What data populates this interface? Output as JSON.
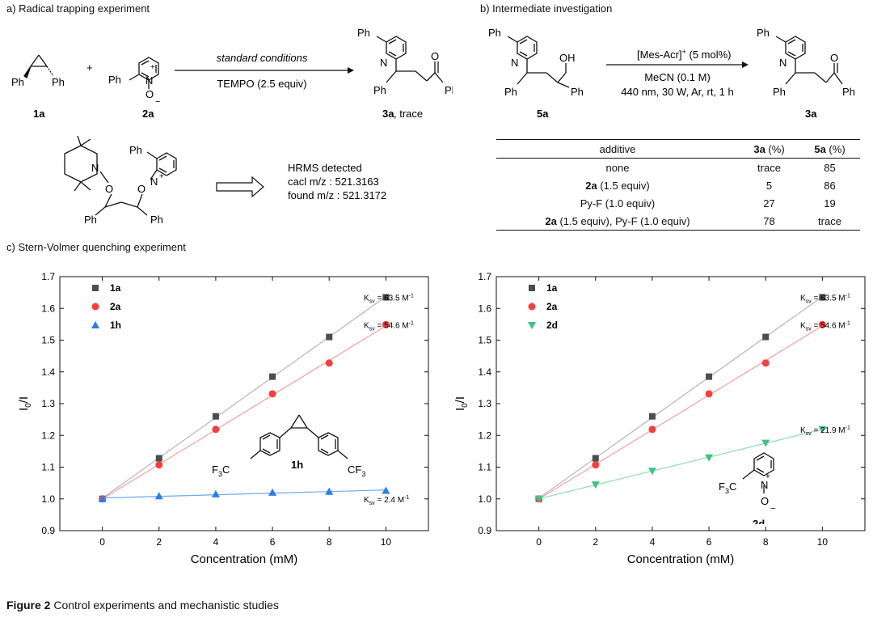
{
  "section_a": {
    "title": "a) Radical trapping experiment",
    "cpd1_label": "1a",
    "cpd2_label": "2a",
    "product_label": "3a",
    "product_suffix": ", trace",
    "plus": "+",
    "cond_top": "standard conditions",
    "cond_bottom": "TEMPO (2.5 equiv)",
    "ph": "Ph",
    "N": "N",
    "O": "O",
    "Nplus": "N",
    "plus_charge": "+",
    "minus_charge": "−",
    "hrms_title": "HRMS detected",
    "hrms_calc": "cacl m/z : 521.3163",
    "hrms_found": "found m/z : 521.3172"
  },
  "section_b": {
    "title": "b) Intermediate investigation",
    "sm_label": "5a",
    "prod_label": "3a",
    "OH": "OH",
    "cond_1": "[Mes-Acr]",
    "cond_1_sup": "+",
    "cond_1_tail": " (5 mol%)",
    "cond_2": "MeCN (0.1 M)",
    "cond_3": "440 nm, 30 W, Ar, rt, 1 h",
    "table": {
      "headers": {
        "additive": "additive",
        "c3a_bold": "3a",
        "c3a_unit": " (%)",
        "c5a_bold": "5a",
        "c5a_unit": " (%)"
      },
      "rows": [
        {
          "additive_bold": "",
          "additive": "none",
          "v3a": "trace",
          "v5a": "85"
        },
        {
          "additive_bold": "2a",
          "additive": " (1.5 equiv)",
          "v3a": "5",
          "v5a": "86"
        },
        {
          "additive_bold": "",
          "additive": "Py-F (1.0 equiv)",
          "v3a": "27",
          "v5a": "19"
        },
        {
          "additive_bold": "2a",
          "additive": " (1.5 equiv), Py-F (1.0 equiv)",
          "v3a": "78",
          "v5a": "trace"
        }
      ]
    }
  },
  "section_c": {
    "title": "c) Stern-Volmer quenching experiment",
    "cpd_1h": "1h",
    "cpd_2d": "2d",
    "cf3": "F",
    "cf3_sub": "3",
    "cf3_prefix": "F",
    "cf3_prefix_c": "C"
  },
  "chart_data": [
    {
      "type": "scatter",
      "xlabel": "Concentration (mM)",
      "ylabel": "I0/I",
      "ylabel_main": "I",
      "ylabel_sub": "0",
      "ylabel_tail": "/I",
      "xlim": [
        -1.5,
        11.5
      ],
      "ylim": [
        0.9,
        1.7
      ],
      "x_ticks": [
        "0",
        "2",
        "4",
        "6",
        "8",
        "10"
      ],
      "y_ticks": [
        "0.9",
        "1.0",
        "1.1",
        "1.2",
        "1.3",
        "1.4",
        "1.5",
        "1.6",
        "1.7"
      ],
      "x": [
        0,
        2,
        4,
        6,
        8,
        10
      ],
      "legend_position": "top-left",
      "series": [
        {
          "name": "1a",
          "marker": "square",
          "color": "#4d4d4d",
          "line_color": "#b5b5b5",
          "values": [
            1.0,
            1.128,
            1.26,
            1.385,
            1.51,
            1.635
          ],
          "ksv": "63.5",
          "ksv_y": 1.635
        },
        {
          "name": "2a",
          "marker": "circle",
          "color": "#f24040",
          "line_color": "#f5a0a0",
          "values": [
            1.0,
            1.107,
            1.219,
            1.331,
            1.428,
            1.549
          ],
          "ksv": "54.6",
          "ksv_y": 1.549
        },
        {
          "name": "1h",
          "marker": "triangle-up",
          "color": "#2b7de9",
          "line_color": "#6fa7ee",
          "values": [
            1.0,
            1.009,
            1.015,
            1.02,
            1.023,
            1.026
          ],
          "ksv": "2.4",
          "ksv_y": 1.0
        }
      ]
    },
    {
      "type": "scatter",
      "xlabel": "Concentration (mM)",
      "ylabel": "I0/I",
      "ylabel_main": "I",
      "ylabel_sub": "0",
      "ylabel_tail": "/I",
      "xlim": [
        -1.5,
        11.5
      ],
      "ylim": [
        0.9,
        1.7
      ],
      "x_ticks": [
        "0",
        "2",
        "4",
        "6",
        "8",
        "10"
      ],
      "y_ticks": [
        "0.9",
        "1.0",
        "1.1",
        "1.2",
        "1.3",
        "1.4",
        "1.5",
        "1.6",
        "1.7"
      ],
      "x": [
        0,
        2,
        4,
        6,
        8,
        10
      ],
      "legend_position": "top-left",
      "series": [
        {
          "name": "1a",
          "marker": "square",
          "color": "#4d4d4d",
          "line_color": "#b5b5b5",
          "values": [
            1.0,
            1.128,
            1.26,
            1.385,
            1.51,
            1.635
          ],
          "ksv": "63.5",
          "ksv_y": 1.635
        },
        {
          "name": "2a",
          "marker": "circle",
          "color": "#f24040",
          "line_color": "#f5a0a0",
          "values": [
            1.0,
            1.107,
            1.219,
            1.331,
            1.428,
            1.549
          ],
          "ksv": "54.6",
          "ksv_y": 1.549
        },
        {
          "name": "2d",
          "marker": "triangle-down",
          "color": "#3ec383",
          "line_color": "#8fdcb3",
          "values": [
            1.0,
            1.045,
            1.088,
            1.13,
            1.176,
            1.219
          ],
          "ksv": "21.9",
          "ksv_y": 1.219
        }
      ]
    }
  ],
  "ksv_prefix": "K",
  "ksv_sub": "sv",
  "ksv_eq": " = ",
  "ksv_unit": " M",
  "ksv_unit_sup": "-1",
  "caption": {
    "bold": "Figure 2",
    "text": " Control experiments and mechanistic studies"
  }
}
